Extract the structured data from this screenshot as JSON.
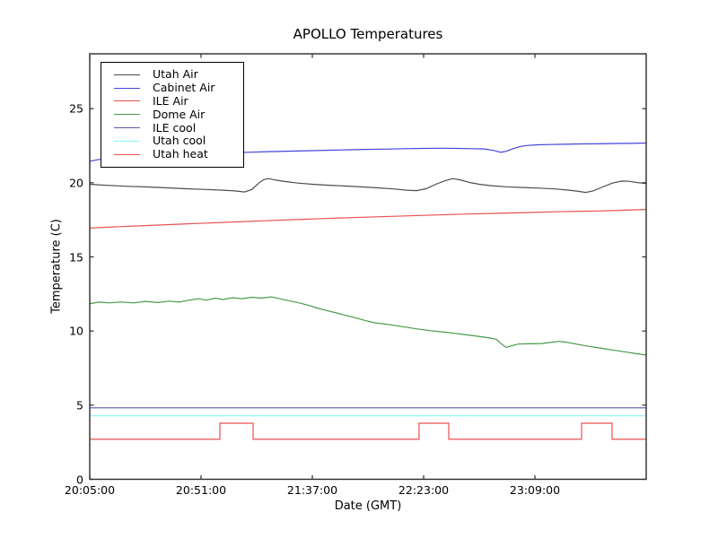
{
  "figure": {
    "title": "APOLLO Temperatures",
    "xlabel": "Date (GMT)",
    "ylabel": "Temperature (C)"
  },
  "legend": {
    "items": [
      {
        "label": "Utah Air",
        "color": "#4d4d4d"
      },
      {
        "label": "Cabinet Air",
        "color": "#4444dd"
      },
      {
        "label": "ILE Air",
        "color": "#e85050"
      },
      {
        "label": "Dome Air",
        "color": "#4a9a4a"
      },
      {
        "label": "ILE cool",
        "color": "#5a5aa5"
      },
      {
        "label": "Utah cool",
        "color": "#86f8f8"
      },
      {
        "label": "Utah heat",
        "color": "#e85050"
      }
    ]
  },
  "chart_data": {
    "type": "line",
    "title": "APOLLO Temperatures",
    "xlabel": "Date (GMT)",
    "ylabel": "Temperature (C)",
    "x_unit": "minutes since 20:05:00 GMT",
    "xlim": [
      0,
      230
    ],
    "ylim": [
      0,
      28.7
    ],
    "x_ticks": [
      0,
      46,
      92,
      138,
      184
    ],
    "x_tick_labels": [
      "20:05:00",
      "20:51:00",
      "21:37:00",
      "22:23:00",
      "23:09:00"
    ],
    "y_ticks": [
      0,
      5,
      10,
      15,
      20,
      25
    ],
    "grid": false,
    "legend_position": "upper left",
    "series": [
      {
        "name": "Utah Air",
        "color": "#4d4d4d",
        "points": [
          [
            0,
            19.9
          ],
          [
            8,
            19.82
          ],
          [
            16,
            19.76
          ],
          [
            24,
            19.72
          ],
          [
            32,
            19.66
          ],
          [
            40,
            19.6
          ],
          [
            48,
            19.55
          ],
          [
            55,
            19.5
          ],
          [
            60,
            19.45
          ],
          [
            64,
            19.38
          ],
          [
            67,
            19.55
          ],
          [
            70,
            20.0
          ],
          [
            72,
            20.22
          ],
          [
            74,
            20.28
          ],
          [
            77,
            20.18
          ],
          [
            81,
            20.08
          ],
          [
            86,
            19.98
          ],
          [
            92,
            19.9
          ],
          [
            99,
            19.83
          ],
          [
            106,
            19.78
          ],
          [
            113,
            19.72
          ],
          [
            120,
            19.65
          ],
          [
            126,
            19.58
          ],
          [
            131,
            19.5
          ],
          [
            135,
            19.47
          ],
          [
            139,
            19.6
          ],
          [
            143,
            19.9
          ],
          [
            147,
            20.15
          ],
          [
            150,
            20.28
          ],
          [
            153,
            20.2
          ],
          [
            157,
            20.02
          ],
          [
            161,
            19.9
          ],
          [
            166,
            19.8
          ],
          [
            172,
            19.73
          ],
          [
            179,
            19.68
          ],
          [
            186,
            19.64
          ],
          [
            193,
            19.58
          ],
          [
            198,
            19.5
          ],
          [
            202,
            19.42
          ],
          [
            205,
            19.35
          ],
          [
            208,
            19.45
          ],
          [
            212,
            19.72
          ],
          [
            216,
            19.98
          ],
          [
            220,
            20.12
          ],
          [
            223,
            20.1
          ],
          [
            226,
            20.02
          ],
          [
            230,
            19.95
          ]
        ]
      },
      {
        "name": "Cabinet Air",
        "color": "#4444dd",
        "points": [
          [
            0,
            21.45
          ],
          [
            3,
            21.55
          ],
          [
            7,
            21.62
          ],
          [
            12,
            21.7
          ],
          [
            18,
            21.76
          ],
          [
            25,
            21.82
          ],
          [
            33,
            21.88
          ],
          [
            41,
            21.93
          ],
          [
            50,
            21.98
          ],
          [
            58,
            22.02
          ],
          [
            66,
            22.06
          ],
          [
            74,
            22.1
          ],
          [
            82,
            22.13
          ],
          [
            90,
            22.16
          ],
          [
            98,
            22.19
          ],
          [
            106,
            22.22
          ],
          [
            114,
            22.25
          ],
          [
            122,
            22.27
          ],
          [
            130,
            22.3
          ],
          [
            138,
            22.32
          ],
          [
            146,
            22.33
          ],
          [
            152,
            22.32
          ],
          [
            158,
            22.3
          ],
          [
            163,
            22.28
          ],
          [
            167,
            22.18
          ],
          [
            170,
            22.05
          ],
          [
            172,
            22.12
          ],
          [
            175,
            22.3
          ],
          [
            178,
            22.45
          ],
          [
            181,
            22.52
          ],
          [
            185,
            22.56
          ],
          [
            190,
            22.58
          ],
          [
            196,
            22.6
          ],
          [
            203,
            22.62
          ],
          [
            210,
            22.63
          ],
          [
            217,
            22.65
          ],
          [
            224,
            22.66
          ],
          [
            230,
            22.68
          ]
        ]
      },
      {
        "name": "ILE Air",
        "color": "#e85050",
        "points": [
          [
            0,
            16.95
          ],
          [
            12,
            17.04
          ],
          [
            24,
            17.12
          ],
          [
            36,
            17.2
          ],
          [
            48,
            17.28
          ],
          [
            60,
            17.36
          ],
          [
            72,
            17.44
          ],
          [
            84,
            17.51
          ],
          [
            96,
            17.58
          ],
          [
            108,
            17.65
          ],
          [
            120,
            17.71
          ],
          [
            132,
            17.77
          ],
          [
            144,
            17.83
          ],
          [
            156,
            17.89
          ],
          [
            168,
            17.94
          ],
          [
            180,
            17.99
          ],
          [
            192,
            18.04
          ],
          [
            202,
            18.08
          ],
          [
            210,
            18.1
          ],
          [
            216,
            18.12
          ],
          [
            222,
            18.15
          ],
          [
            230,
            18.2
          ]
        ]
      },
      {
        "name": "Dome Air",
        "color": "#4a9a4a",
        "points": [
          [
            0,
            11.85
          ],
          [
            4,
            11.95
          ],
          [
            8,
            11.9
          ],
          [
            13,
            11.96
          ],
          [
            18,
            11.9
          ],
          [
            23,
            12.0
          ],
          [
            28,
            11.92
          ],
          [
            33,
            12.02
          ],
          [
            37,
            11.95
          ],
          [
            41,
            12.08
          ],
          [
            45,
            12.18
          ],
          [
            48,
            12.08
          ],
          [
            52,
            12.22
          ],
          [
            55,
            12.12
          ],
          [
            59,
            12.25
          ],
          [
            63,
            12.18
          ],
          [
            67,
            12.28
          ],
          [
            71,
            12.22
          ],
          [
            75,
            12.3
          ],
          [
            78,
            12.2
          ],
          [
            82,
            12.05
          ],
          [
            86,
            11.92
          ],
          [
            90,
            11.75
          ],
          [
            94,
            11.55
          ],
          [
            98,
            11.38
          ],
          [
            102,
            11.22
          ],
          [
            106,
            11.05
          ],
          [
            110,
            10.88
          ],
          [
            114,
            10.7
          ],
          [
            118,
            10.55
          ],
          [
            123,
            10.45
          ],
          [
            129,
            10.3
          ],
          [
            135,
            10.15
          ],
          [
            141,
            10.02
          ],
          [
            147,
            9.92
          ],
          [
            153,
            9.8
          ],
          [
            159,
            9.68
          ],
          [
            164,
            9.56
          ],
          [
            168,
            9.45
          ],
          [
            170,
            9.15
          ],
          [
            172,
            8.9
          ],
          [
            174,
            8.98
          ],
          [
            177,
            9.12
          ],
          [
            182,
            9.14
          ],
          [
            187,
            9.16
          ],
          [
            191,
            9.25
          ],
          [
            194,
            9.3
          ],
          [
            197,
            9.25
          ],
          [
            201,
            9.12
          ],
          [
            205,
            9.0
          ],
          [
            209,
            8.9
          ],
          [
            213,
            8.8
          ],
          [
            217,
            8.7
          ],
          [
            221,
            8.6
          ],
          [
            225,
            8.5
          ],
          [
            230,
            8.38
          ]
        ]
      },
      {
        "name": "ILE cool",
        "color": "#5a5aa5",
        "points": [
          [
            0,
            4.82
          ],
          [
            230,
            4.82
          ]
        ]
      },
      {
        "name": "Utah cool",
        "color": "#86f8f8",
        "points": [
          [
            0,
            4.28
          ],
          [
            230,
            4.28
          ]
        ]
      },
      {
        "name": "Utah heat",
        "color": "#e85050",
        "points": [
          [
            0,
            2.7
          ],
          [
            53.8,
            2.7
          ],
          [
            53.8,
            3.78
          ],
          [
            67.5,
            3.78
          ],
          [
            67.5,
            2.7
          ],
          [
            136.1,
            2.7
          ],
          [
            136.1,
            3.78
          ],
          [
            148.4,
            3.78
          ],
          [
            148.4,
            2.7
          ],
          [
            203.3,
            2.7
          ],
          [
            203.3,
            3.78
          ],
          [
            215.9,
            3.78
          ],
          [
            215.9,
            2.7
          ],
          [
            230,
            2.7
          ]
        ]
      }
    ]
  }
}
